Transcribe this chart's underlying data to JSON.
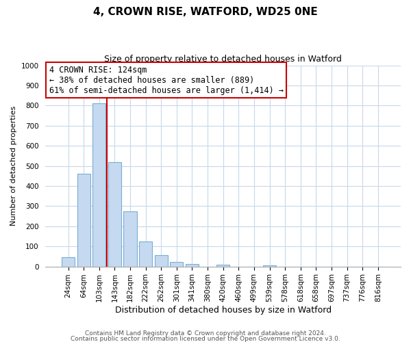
{
  "title": "4, CROWN RISE, WATFORD, WD25 0NE",
  "subtitle": "Size of property relative to detached houses in Watford",
  "xlabel": "Distribution of detached houses by size in Watford",
  "ylabel": "Number of detached properties",
  "bar_labels": [
    "24sqm",
    "64sqm",
    "103sqm",
    "143sqm",
    "182sqm",
    "222sqm",
    "262sqm",
    "301sqm",
    "341sqm",
    "380sqm",
    "420sqm",
    "460sqm",
    "499sqm",
    "539sqm",
    "578sqm",
    "618sqm",
    "658sqm",
    "697sqm",
    "737sqm",
    "776sqm",
    "816sqm"
  ],
  "bar_values": [
    47,
    460,
    810,
    520,
    275,
    125,
    58,
    22,
    12,
    0,
    10,
    0,
    0,
    7,
    0,
    0,
    0,
    0,
    0,
    0,
    0
  ],
  "bar_color": "#c5d9f0",
  "bar_edge_color": "#7aadd4",
  "vline_color": "#cc0000",
  "vline_x_index": 2.5,
  "annotation_lines": [
    "4 CROWN RISE: 124sqm",
    "← 38% of detached houses are smaller (889)",
    "61% of semi-detached houses are larger (1,414) →"
  ],
  "ylim": [
    0,
    1000
  ],
  "yticks": [
    0,
    100,
    200,
    300,
    400,
    500,
    600,
    700,
    800,
    900,
    1000
  ],
  "footer_line1": "Contains HM Land Registry data © Crown copyright and database right 2024.",
  "footer_line2": "Contains public sector information licensed under the Open Government Licence v3.0.",
  "bg_color": "#ffffff",
  "grid_color": "#c8d8e8",
  "title_fontsize": 11,
  "subtitle_fontsize": 9,
  "xlabel_fontsize": 9,
  "ylabel_fontsize": 8,
  "tick_fontsize": 7.5,
  "footer_fontsize": 6.5,
  "annotation_fontsize": 8.5
}
